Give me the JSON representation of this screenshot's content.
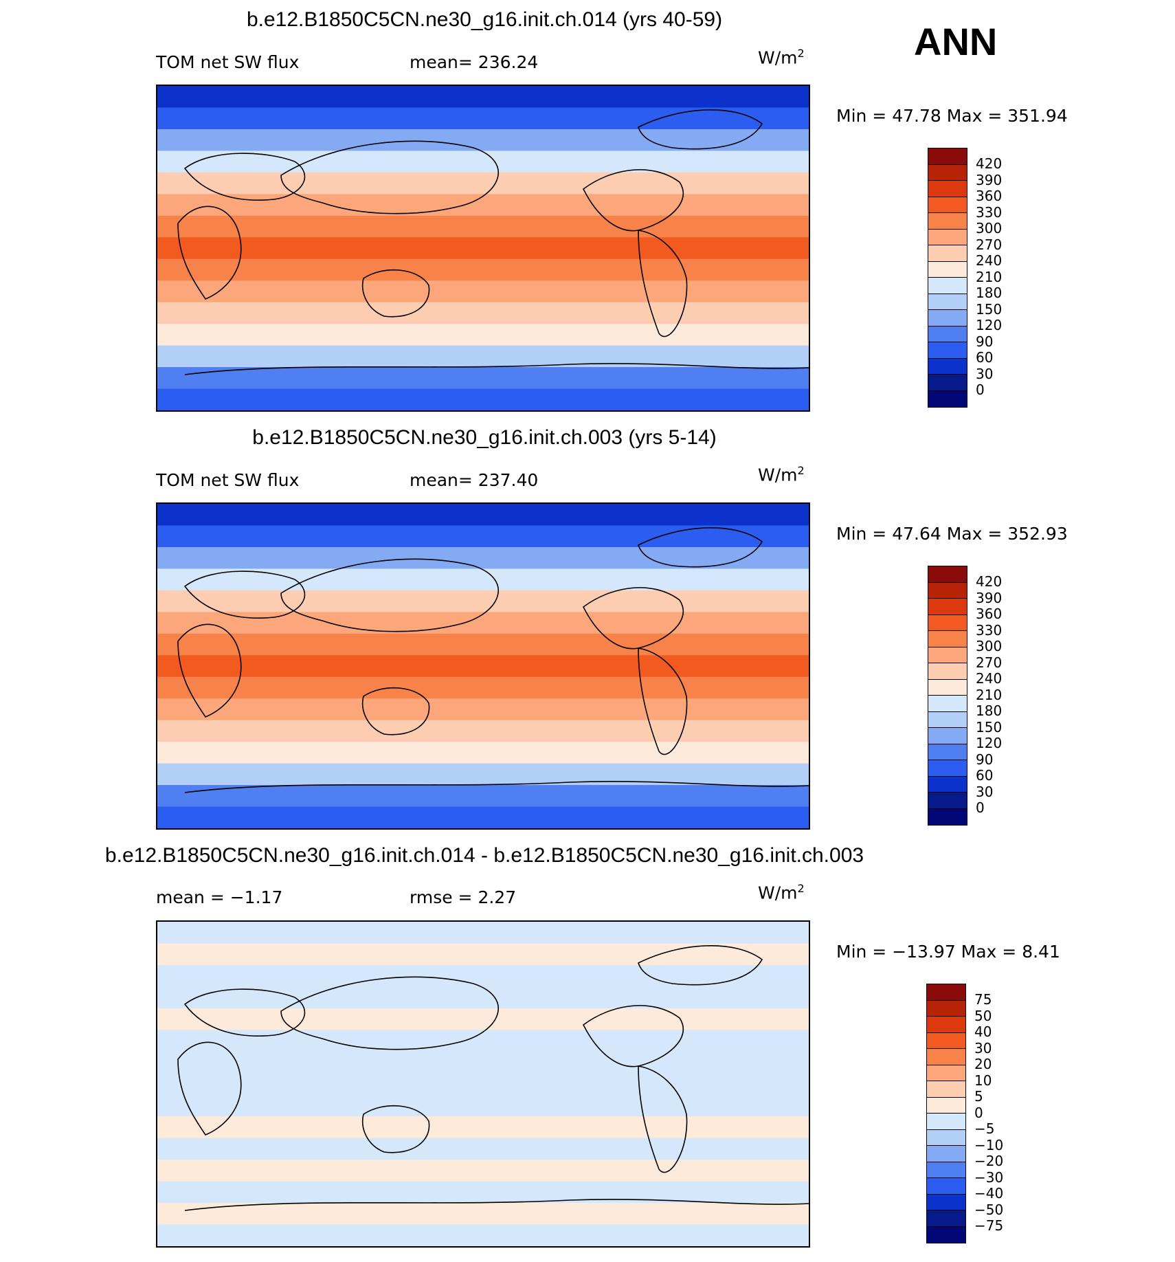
{
  "season": "ANN",
  "panels": [
    {
      "title": "b.e12.B1850C5CN.ne30_g16.init.ch.014 (yrs 40-59)",
      "left_label": "TOM net SW flux",
      "center_label": "mean= 236.24",
      "units": "W/m",
      "units_sup": "2",
      "minmax": "Min =   47.78 Max = 351.94",
      "colorbar_labels": [
        "420",
        "390",
        "360",
        "330",
        "300",
        "270",
        "240",
        "210",
        "180",
        "150",
        "120",
        "90",
        "60",
        "30",
        "0"
      ],
      "colors": [
        "#8b0a0a",
        "#b62306",
        "#dc3a0e",
        "#f25a20",
        "#f7824a",
        "#fca77b",
        "#fccdb0",
        "#fdeadb",
        "#d5e7fa",
        "#b2cff7",
        "#83aaf2",
        "#4f7ff0",
        "#2b5ef0",
        "#0b33cc",
        "#061a8c",
        "#020777"
      ]
    },
    {
      "title": "b.e12.B1850C5CN.ne30_g16.init.ch.003 (yrs 5-14)",
      "left_label": "TOM net SW flux",
      "center_label": "mean= 237.40",
      "units": "W/m",
      "units_sup": "2",
      "minmax": "Min =   47.64 Max = 352.93",
      "colorbar_labels": [
        "420",
        "390",
        "360",
        "330",
        "300",
        "270",
        "240",
        "210",
        "180",
        "150",
        "120",
        "90",
        "60",
        "30",
        "0"
      ],
      "colors": [
        "#8b0a0a",
        "#b62306",
        "#dc3a0e",
        "#f25a20",
        "#f7824a",
        "#fca77b",
        "#fccdb0",
        "#fdeadb",
        "#d5e7fa",
        "#b2cff7",
        "#83aaf2",
        "#4f7ff0",
        "#2b5ef0",
        "#0b33cc",
        "#061a8c",
        "#020777"
      ]
    },
    {
      "title": "b.e12.B1850C5CN.ne30_g16.init.ch.014 - b.e12.B1850C5CN.ne30_g16.init.ch.003",
      "left_label": "mean =   −1.17",
      "center_label": "rmse =    2.27",
      "units": "W/m",
      "units_sup": "2",
      "minmax": "Min = −13.97 Max =    8.41",
      "colorbar_labels": [
        "75",
        "50",
        "40",
        "30",
        "20",
        "10",
        "5",
        "0",
        "−5",
        "−10",
        "−20",
        "−30",
        "−40",
        "−50",
        "−75"
      ],
      "colors": [
        "#8b0a0a",
        "#b62306",
        "#dc3a0e",
        "#f25a20",
        "#f7824a",
        "#fca77b",
        "#fccdb0",
        "#fdeadb",
        "#d5e7fa",
        "#b2cff7",
        "#83aaf2",
        "#4f7ff0",
        "#2b5ef0",
        "#0b33cc",
        "#061a8c",
        "#020777"
      ]
    }
  ],
  "chart_data": [
    {
      "type": "heatmap",
      "title": "b.e12.B1850C5CN.ne30_g16.init.ch.014 (yrs 40-59)",
      "variable": "TOM net SW flux",
      "units": "W/m2",
      "mean": 236.24,
      "min": 47.78,
      "max": 351.94,
      "levels": [
        0,
        30,
        60,
        90,
        120,
        150,
        180,
        210,
        240,
        270,
        300,
        330,
        360,
        390,
        420
      ],
      "zonal_band_values": [
        40,
        80,
        140,
        200,
        250,
        290,
        310,
        330,
        310,
        290,
        250,
        210,
        170,
        110,
        60
      ]
    },
    {
      "type": "heatmap",
      "title": "b.e12.B1850C5CN.ne30_g16.init.ch.003 (yrs 5-14)",
      "variable": "TOM net SW flux",
      "units": "W/m2",
      "mean": 237.4,
      "min": 47.64,
      "max": 352.93,
      "levels": [
        0,
        30,
        60,
        90,
        120,
        150,
        180,
        210,
        240,
        270,
        300,
        330,
        360,
        390,
        420
      ],
      "zonal_band_values": [
        40,
        80,
        140,
        200,
        250,
        290,
        315,
        335,
        315,
        290,
        250,
        210,
        170,
        110,
        60
      ]
    },
    {
      "type": "heatmap",
      "title": "b.e12.B1850C5CN.ne30_g16.init.ch.014 - b.e12.B1850C5CN.ne30_g16.init.ch.003",
      "units": "W/m2",
      "mean": -1.17,
      "rmse": 2.27,
      "min": -13.97,
      "max": 8.41,
      "levels": [
        -75,
        -50,
        -40,
        -30,
        -20,
        -10,
        -5,
        0,
        5,
        10,
        20,
        30,
        40,
        50,
        75
      ],
      "zonal_band_values": [
        -2,
        2,
        -2,
        -3,
        2,
        -2,
        -3,
        -2,
        -3,
        2,
        -2,
        2,
        -3,
        2,
        -2
      ]
    }
  ]
}
